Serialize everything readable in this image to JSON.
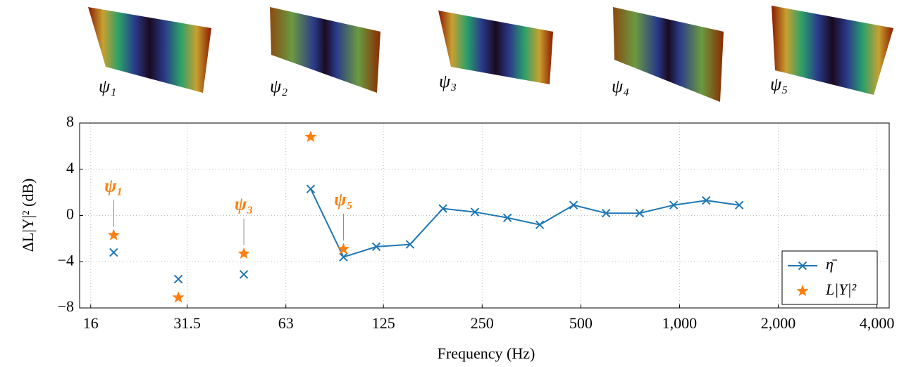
{
  "mode_images": [
    "ψ₁",
    "ψ₂",
    "ψ₃",
    "ψ₄",
    "ψ₅"
  ],
  "chart_data": {
    "type": "line",
    "y_label": "ΔL|Y|² (dB)",
    "x_label": "Frequency (Hz)",
    "x": [
      18.8,
      29.6,
      46.9,
      75,
      94.4,
      118.9,
      150.7,
      189.8,
      237.6,
      298.6,
      374.8,
      475,
      597,
      756,
      960,
      1206,
      1521
    ],
    "series": [
      {
        "name": "η̄",
        "color": "#1f77b4",
        "marker": "x",
        "values": [
          -3.2,
          -5.5,
          -5.1,
          2.3,
          -3.6,
          -2.7,
          -2.5,
          0.6,
          0.3,
          -0.2,
          -0.8,
          0.9,
          0.2,
          0.2,
          0.9,
          1.3,
          0.9
        ]
      },
      {
        "name": "L|Y|²",
        "color": "#ff7f0e",
        "marker": "star",
        "values": [
          -1.7,
          -7.1,
          -3.3,
          6.8,
          -2.9,
          null,
          null,
          null,
          null,
          null,
          null,
          null,
          null,
          null,
          null,
          null,
          null
        ]
      }
    ],
    "annotations": [
      {
        "text": "ψ₁",
        "x": 18.8
      },
      {
        "text": "ψ₃",
        "x": 46.9
      },
      {
        "text": "ψ₅",
        "x": 94.4
      }
    ],
    "xscale": "log",
    "xlim": [
      14.8,
      4360
    ],
    "xticks": [
      16,
      31.5,
      63,
      125,
      250,
      500,
      {
        "value": 1000,
        "label": "1,000"
      },
      {
        "value": 2000,
        "label": "2,000"
      },
      {
        "value": 4000,
        "label": "4,000"
      }
    ],
    "ylim": [
      -8,
      8
    ],
    "yticks": [
      {
        "value": -8,
        "label": "−8"
      },
      {
        "value": -4,
        "label": "−4"
      },
      0,
      4,
      8
    ],
    "grid": true,
    "legend": "lower right"
  }
}
